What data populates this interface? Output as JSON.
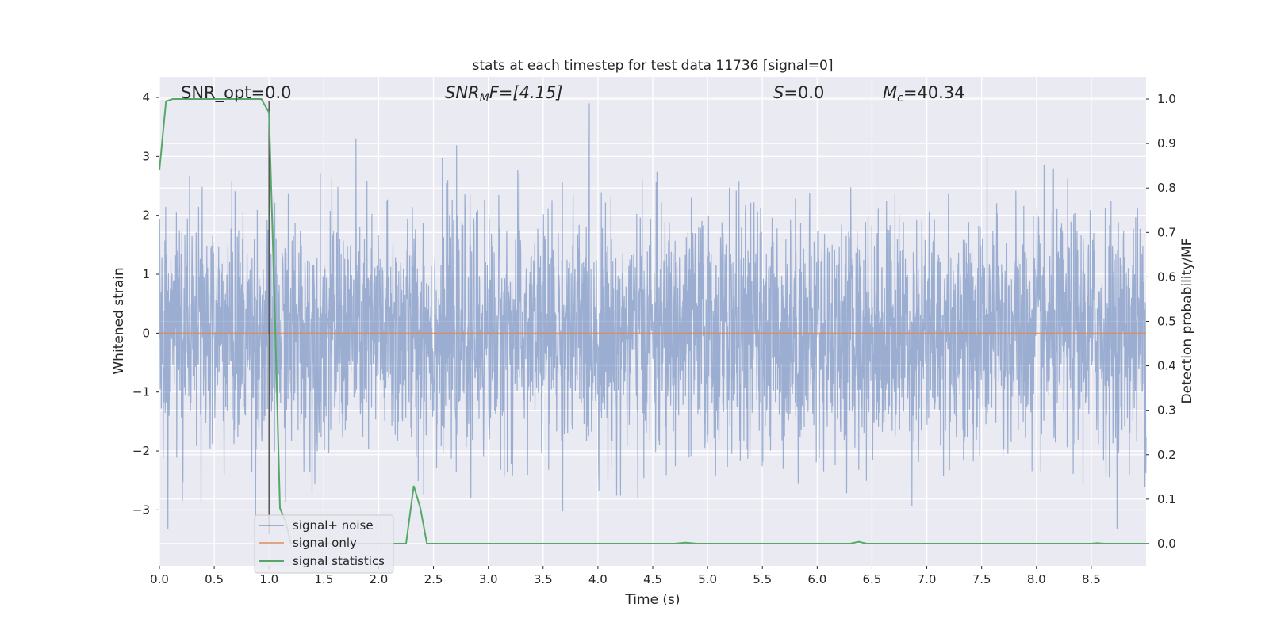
{
  "chart_data": {
    "type": "line",
    "title": "stats at each timestep for test data 11736 [signal=0]",
    "xlabel": "Time (s)",
    "ylabel": "Whitened strain",
    "y2label": "Detection probability/MF",
    "xlim": [
      0,
      9.0
    ],
    "ylim": [
      -3.95,
      4.35
    ],
    "y2lim": [
      -0.05,
      1.05
    ],
    "xticks": [
      "0.0",
      "0.5",
      "1.0",
      "1.5",
      "2.0",
      "2.5",
      "3.0",
      "3.5",
      "4.0",
      "4.5",
      "5.0",
      "5.5",
      "6.0",
      "6.5",
      "7.0",
      "7.5",
      "8.0",
      "8.5"
    ],
    "yticks": [
      "4",
      "3",
      "2",
      "1",
      "0",
      "−1",
      "−2",
      "−3"
    ],
    "y2ticks": [
      "1.0",
      "0.9",
      "0.8",
      "0.7",
      "0.6",
      "0.5",
      "0.4",
      "0.3",
      "0.2",
      "0.1",
      "0.0"
    ],
    "grid": true,
    "legend_position": "lower-left",
    "marker_line_x": 1.0,
    "annotations": {
      "snr_opt": "SNR_opt=0.0",
      "snr_mf_base": "SNR",
      "snr_mf_sub": "M",
      "snr_mf_rest": "F=[4.15]",
      "s_base": "S",
      "s_rest": "=0.0",
      "mc_base": "M",
      "mc_sub": "c",
      "mc_rest": "=40.34"
    },
    "series": [
      {
        "name": "signal+ noise",
        "axis": "left",
        "color": "#4c72b0",
        "description_note": "dense whitened noise, approx N(0,1)"
      },
      {
        "name": "signal only",
        "axis": "left",
        "color": "#dd8452",
        "x": [
          0,
          9.0
        ],
        "y": [
          0,
          0
        ]
      },
      {
        "name": "signal statistics",
        "axis": "right",
        "color": "#55a868",
        "x": [
          0.0,
          0.06,
          0.12,
          0.25,
          0.5,
          0.75,
          0.93,
          1.0,
          1.05,
          1.1,
          1.15,
          1.2,
          1.3,
          1.6,
          2.0,
          2.25,
          2.32,
          2.38,
          2.44,
          2.5,
          3.0,
          4.0,
          4.7,
          4.8,
          4.9,
          5.0,
          6.0,
          6.3,
          6.38,
          6.45,
          6.6,
          7.0,
          8.0,
          8.5,
          8.55,
          8.62,
          9.0
        ],
        "y": [
          0.84,
          0.995,
          1.0,
          1.0,
          1.0,
          1.0,
          1.0,
          0.97,
          0.55,
          0.08,
          0.05,
          0.0,
          0.0,
          0.0,
          0.0,
          0.0,
          0.13,
          0.08,
          0.0,
          0.0,
          0.0,
          0.0,
          0.0,
          0.002,
          0.0,
          0.0,
          0.0,
          0.0,
          0.004,
          0.0,
          0.0,
          0.0,
          0.0,
          0.0,
          0.001,
          0.0,
          0.0
        ]
      }
    ]
  }
}
